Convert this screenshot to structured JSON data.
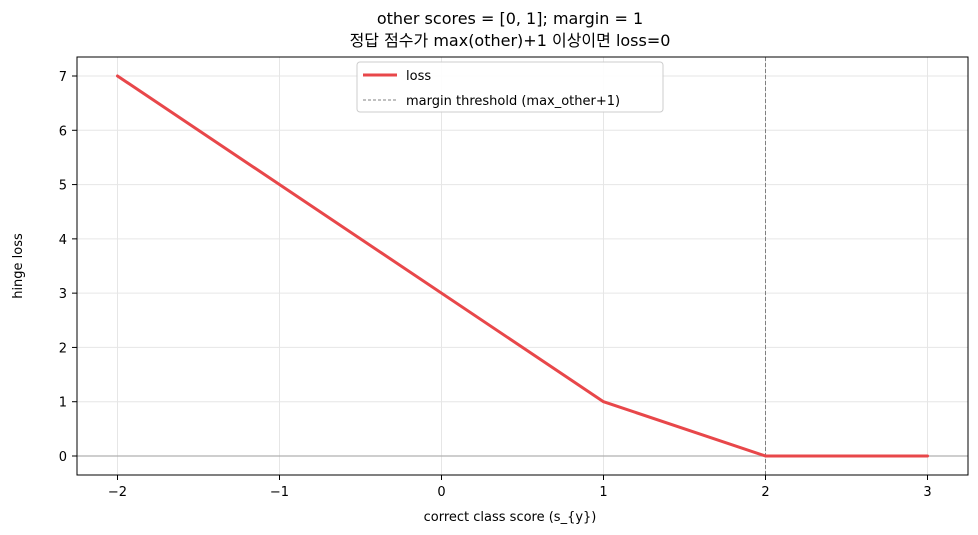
{
  "chart_data": {
    "type": "line",
    "title": "other scores = [0, 1];  margin = 1",
    "subtitle": "정답 점수가 max(other)+1 이상이면 loss=0",
    "xlabel": "correct class score (s_{y})",
    "ylabel": "hinge loss",
    "xlim": [
      -2.25,
      3.25
    ],
    "ylim": [
      -0.35,
      7.35
    ],
    "xticks": [
      -2,
      -1,
      0,
      1,
      2,
      3
    ],
    "xtick_labels": [
      "−2",
      "−1",
      "0",
      "1",
      "2",
      "3"
    ],
    "yticks": [
      0,
      1,
      2,
      3,
      4,
      5,
      6,
      7
    ],
    "ytick_labels": [
      "0",
      "1",
      "2",
      "3",
      "4",
      "5",
      "6",
      "7"
    ],
    "grid": true,
    "legend_position": "top-center",
    "series": [
      {
        "name": "loss",
        "color": "#e8474a",
        "x": [
          -2,
          1,
          2,
          3
        ],
        "y": [
          7,
          1,
          0,
          0
        ]
      }
    ],
    "vline": {
      "name": "margin threshold (max_other+1)",
      "x": 2,
      "color": "#808080",
      "style": "dashed"
    },
    "hline": {
      "y": 0,
      "color": "#b0b0b0"
    }
  }
}
